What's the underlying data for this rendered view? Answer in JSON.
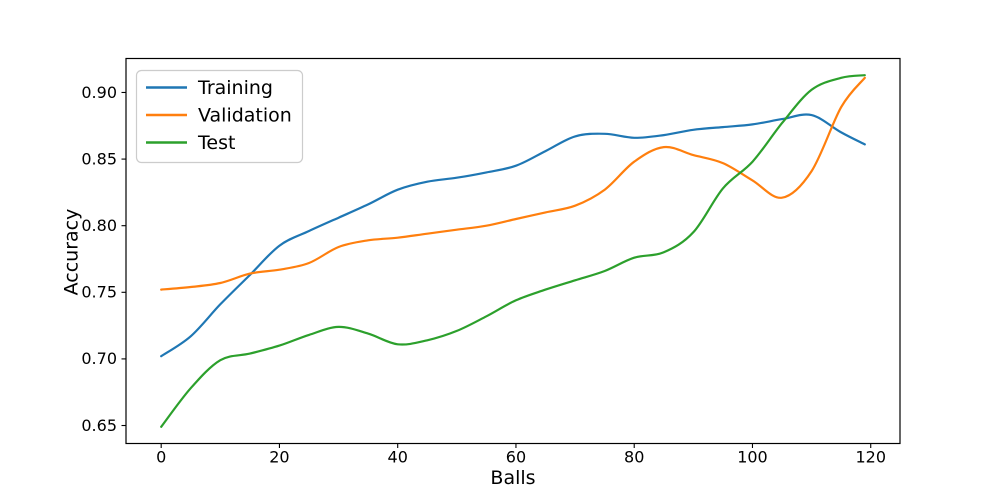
{
  "chart_data": {
    "type": "line",
    "title": "",
    "xlabel": "Balls",
    "ylabel": "Accuracy",
    "grid": false,
    "background_color": "#ffffff",
    "axis_color": "#000000",
    "text_color": "#000000",
    "legend": {
      "position": "upper left",
      "border_color": "#cccccc",
      "entries": [
        "Training",
        "Validation",
        "Test"
      ]
    },
    "xlim": [
      -5.95,
      124.95
    ],
    "ylim": [
      0.6365,
      0.9255
    ],
    "xticks": {
      "values": [
        0,
        20,
        40,
        60,
        80,
        100,
        120
      ],
      "labels": [
        "0",
        "20",
        "40",
        "60",
        "80",
        "100",
        "120"
      ]
    },
    "yticks": {
      "values": [
        0.65,
        0.7,
        0.75,
        0.8,
        0.85,
        0.9
      ],
      "labels": [
        "0.65",
        "0.70",
        "0.75",
        "0.80",
        "0.85",
        "0.90"
      ]
    },
    "x": [
      0,
      5,
      10,
      15,
      20,
      25,
      30,
      35,
      40,
      45,
      50,
      55,
      60,
      65,
      70,
      75,
      80,
      85,
      90,
      95,
      100,
      105,
      110,
      115,
      119
    ],
    "series": [
      {
        "name": "Training",
        "color": "#1f77b4",
        "values": [
          0.702,
          0.717,
          0.741,
          0.763,
          0.785,
          0.796,
          0.806,
          0.816,
          0.827,
          0.833,
          0.836,
          0.84,
          0.845,
          0.856,
          0.867,
          0.869,
          0.866,
          0.868,
          0.872,
          0.874,
          0.876,
          0.88,
          0.883,
          0.87,
          0.861
        ]
      },
      {
        "name": "Validation",
        "color": "#ff7f0e",
        "values": [
          0.752,
          0.754,
          0.757,
          0.764,
          0.767,
          0.772,
          0.784,
          0.789,
          0.791,
          0.794,
          0.797,
          0.8,
          0.805,
          0.81,
          0.815,
          0.827,
          0.848,
          0.859,
          0.853,
          0.847,
          0.834,
          0.821,
          0.841,
          0.889,
          0.911
        ]
      },
      {
        "name": "Test",
        "color": "#2ca02c",
        "values": [
          0.649,
          0.678,
          0.699,
          0.704,
          0.71,
          0.718,
          0.724,
          0.719,
          0.711,
          0.714,
          0.721,
          0.732,
          0.744,
          0.752,
          0.759,
          0.766,
          0.776,
          0.78,
          0.795,
          0.828,
          0.848,
          0.877,
          0.902,
          0.911,
          0.913
        ]
      }
    ]
  }
}
